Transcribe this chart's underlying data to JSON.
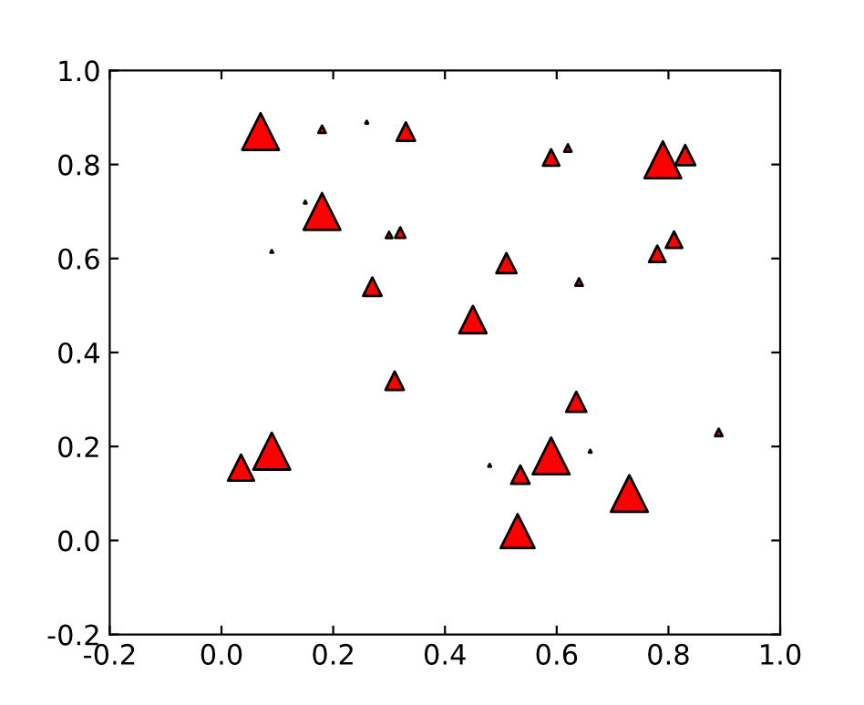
{
  "chart_data": {
    "type": "bubble",
    "marker": "triangle",
    "color": "#ff0000",
    "x": [
      0.07,
      0.18,
      0.26,
      0.33,
      0.18,
      0.15,
      0.09,
      0.3,
      0.32,
      0.27,
      0.31,
      0.45,
      0.51,
      0.59,
      0.62,
      0.79,
      0.83,
      0.81,
      0.78,
      0.64,
      0.53,
      0.59,
      0.535,
      0.48,
      0.66,
      0.635,
      0.73,
      0.89,
      0.035,
      0.09
    ],
    "values": [
      0.87,
      0.875,
      0.89,
      0.87,
      0.7,
      0.72,
      0.615,
      0.65,
      0.655,
      0.54,
      0.34,
      0.47,
      0.59,
      0.815,
      0.835,
      0.81,
      0.82,
      0.64,
      0.61,
      0.55,
      0.02,
      0.18,
      0.14,
      0.16,
      0.19,
      0.295,
      0.1,
      0.23,
      0.155,
      0.19
    ],
    "sizes": [
      1,
      0.04,
      0.005,
      0.25,
      1,
      0.005,
      0.005,
      0.03,
      0.08,
      0.25,
      0.25,
      0.55,
      0.3,
      0.2,
      0.04,
      1,
      0.3,
      0.2,
      0.2,
      0.04,
      0.85,
      1,
      0.25,
      0.005,
      0.005,
      0.3,
      1,
      0.04,
      0.5,
      1
    ],
    "xlim": [
      -0.2,
      1.0
    ],
    "ylim": [
      -0.2,
      1.0
    ],
    "xticks": [
      -0.2,
      {
        "value": 0,
        "label": "0.0"
      },
      0.2,
      0.4,
      0.6,
      0.8,
      {
        "value": 1,
        "label": "1.0"
      }
    ],
    "yticks": [
      -0.2,
      {
        "value": 0,
        "label": "0.0"
      },
      0.2,
      0.4,
      0.6,
      0.8,
      {
        "value": 1,
        "label": "1.0"
      }
    ],
    "grid": false,
    "legend": false
  }
}
